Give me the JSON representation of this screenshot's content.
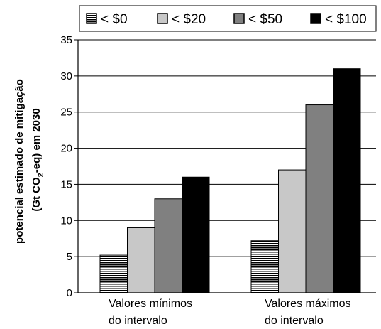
{
  "chart_data": {
    "type": "bar",
    "title": "",
    "xlabel": "",
    "ylabel": {
      "line1": "potencial estimado de mitigação",
      "line2_pre": "(Gt CO",
      "line2_sub": "2",
      "line2_post": "-eq) em 2030"
    },
    "ylim": [
      0,
      35
    ],
    "yticks": [
      0,
      5,
      10,
      15,
      20,
      25,
      30,
      35
    ],
    "grid": true,
    "legend_position": "top",
    "categories": [
      [
        "Valores mínimos",
        "do intervalo"
      ],
      [
        "Valores máximos",
        "do intervalo"
      ]
    ],
    "series": [
      {
        "name": "< $0",
        "values": [
          5.2,
          7.2
        ],
        "fill": "#ffffff",
        "pattern": "horizontal-stripes"
      },
      {
        "name": "< $20",
        "values": [
          9.0,
          17.0
        ],
        "fill": "#c8c8c8",
        "pattern": "solid"
      },
      {
        "name": "< $50",
        "values": [
          13.0,
          26.0
        ],
        "fill": "#808080",
        "pattern": "solid"
      },
      {
        "name": "< $100",
        "values": [
          16.0,
          31.0
        ],
        "fill": "#000000",
        "pattern": "solid"
      }
    ]
  }
}
